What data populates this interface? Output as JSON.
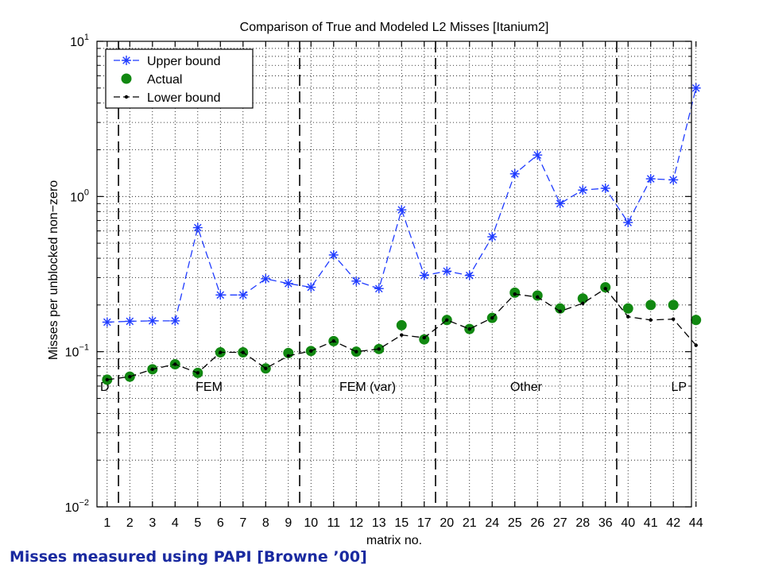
{
  "slide": {
    "caption": "Misses measured using PAPI [Browne ’00]"
  },
  "chart_data": {
    "type": "line",
    "title": "Comparison of True and Modeled L2 Misses [Itanium2]",
    "xlabel": "matrix no.",
    "ylabel": "Misses per unblocked non−zero",
    "yscale": "log",
    "ylim": [
      0.01,
      10
    ],
    "ytick_labels": [
      {
        "base": "10",
        "exp": "-2",
        "value": 0.01
      },
      {
        "base": "10",
        "exp": "-1",
        "value": 0.1
      },
      {
        "base": "10",
        "exp": "0",
        "value": 1
      },
      {
        "base": "10",
        "exp": "1",
        "value": 10
      }
    ],
    "categories": [
      "1",
      "2",
      "3",
      "4",
      "5",
      "6",
      "7",
      "8",
      "9",
      "10",
      "11",
      "12",
      "13",
      "15",
      "17",
      "20",
      "21",
      "24",
      "25",
      "26",
      "27",
      "28",
      "36",
      "40",
      "41",
      "42",
      "44"
    ],
    "grid": true,
    "legend_position": "top-left",
    "series": [
      {
        "name": "Upper bound",
        "style": "dashed",
        "marker": "asterisk",
        "color": "#1f3bff",
        "values": [
          0.155,
          0.157,
          0.158,
          0.158,
          0.63,
          0.232,
          0.232,
          0.295,
          0.275,
          0.26,
          0.42,
          0.285,
          0.255,
          0.82,
          0.31,
          0.33,
          0.31,
          0.55,
          1.4,
          1.85,
          0.9,
          1.1,
          1.13,
          0.68,
          1.3,
          1.28,
          5.0
        ]
      },
      {
        "name": "Actual",
        "style": "none",
        "marker": "circle",
        "color": "#118811",
        "values": [
          0.066,
          0.069,
          0.077,
          0.083,
          0.073,
          0.099,
          0.099,
          0.078,
          0.098,
          0.101,
          0.117,
          0.1,
          0.104,
          0.148,
          0.12,
          0.16,
          0.14,
          0.165,
          0.24,
          0.23,
          0.19,
          0.22,
          0.26,
          0.19,
          0.2,
          0.2,
          0.16
        ]
      },
      {
        "name": "Lower bound",
        "style": "dashed",
        "marker": "dot",
        "color": "#000000",
        "values": [
          0.066,
          0.069,
          0.077,
          0.083,
          0.073,
          0.099,
          0.099,
          0.078,
          0.094,
          0.101,
          0.117,
          0.1,
          0.104,
          0.128,
          0.123,
          0.16,
          0.14,
          0.165,
          0.235,
          0.225,
          0.182,
          0.205,
          0.255,
          0.168,
          0.16,
          0.162,
          0.11
        ]
      }
    ],
    "regions": [
      {
        "label": "D",
        "start_index": 0,
        "end_index": 0
      },
      {
        "label": "FEM",
        "start_index": 1,
        "end_index": 8
      },
      {
        "label": "FEM (var)",
        "start_index": 9,
        "end_index": 14
      },
      {
        "label": "Other",
        "start_index": 15,
        "end_index": 22
      },
      {
        "label": "LP",
        "start_index": 23,
        "end_index": 26
      }
    ],
    "region_label_value": 0.06,
    "colors": {
      "axes": "#000000",
      "grid": "#000000",
      "background": "#ffffff"
    }
  }
}
